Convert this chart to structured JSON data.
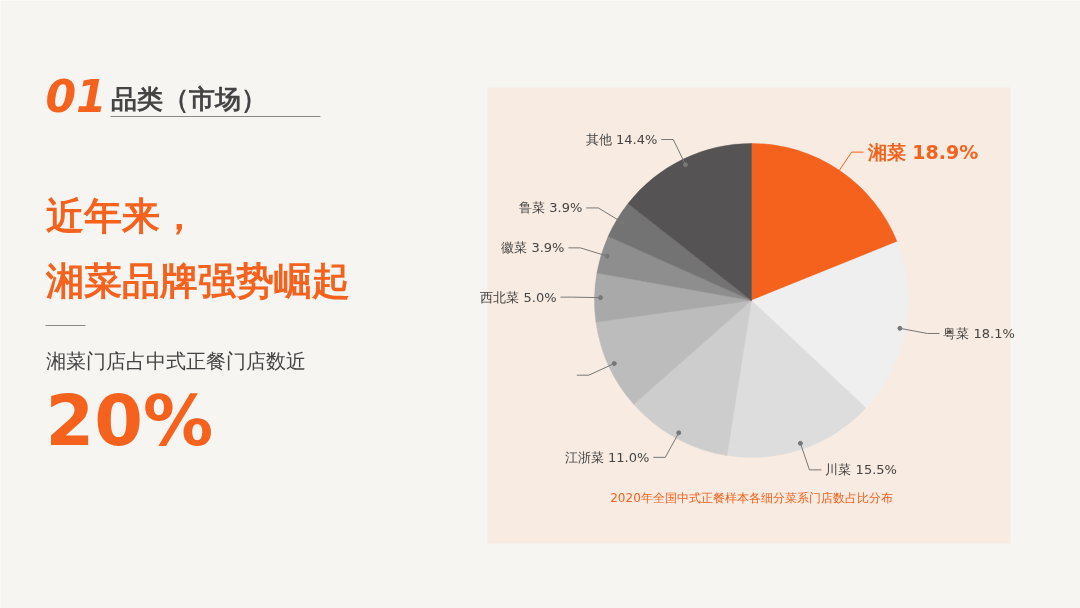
{
  "chart_data": {
    "type": "pie",
    "title": "2020年全国中式正餐样本各细分菜系门店数占比分布",
    "categories": [
      "湘菜",
      "粤菜",
      "川菜",
      "江浙菜",
      null,
      "西北菜",
      "徽菜",
      "鲁菜",
      "其他"
    ],
    "values": [
      18.9,
      18.1,
      15.5,
      11.0,
      9.3,
      5.0,
      3.9,
      3.9,
      14.4
    ],
    "value_labels": [
      "18.9%",
      "18.1%",
      "15.5%",
      "11.0%",
      null,
      "5.0%",
      "3.9%",
      "3.9%",
      "14.4%"
    ],
    "colors": [
      "#f5621e",
      "#efefef",
      "#dddddd",
      "#cdcdcd",
      "#bcbcbc",
      "#a9a9a9",
      "#8e8e8e",
      "#737373",
      "#555353"
    ],
    "annotations": [
      "01",
      "品类（市场）",
      "近年来，",
      "湘菜品牌强势崛起",
      "湘菜门店占中式正餐门店数近",
      "20%"
    ]
  }
}
